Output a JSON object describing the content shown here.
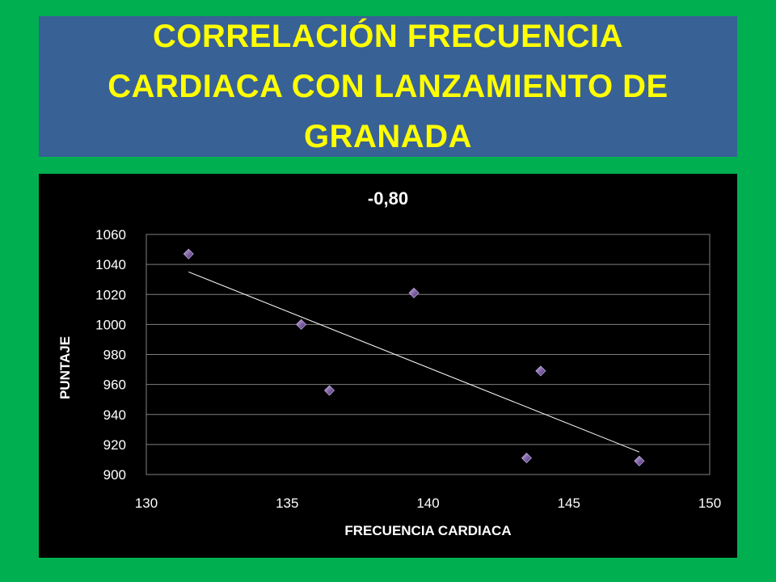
{
  "slide": {
    "title": "CORRELACIÓN FRECUENCIA CARDIACA CON LANZAMIENTO DE GRANADA"
  },
  "colors": {
    "background": "#00b050",
    "banner": "#386196",
    "title_text": "#ffff00",
    "chart_background": "#000000",
    "marker": "#8064a2",
    "trendline": "#ffffff",
    "gridline": "#808080"
  },
  "chart_data": {
    "type": "scatter",
    "title": "-0,80",
    "xlabel": "FRECUENCIA CARDIACA",
    "ylabel": "PUNTAJE",
    "xlim": [
      130,
      150
    ],
    "ylim": [
      900,
      1060
    ],
    "x_ticks": [
      130,
      135,
      140,
      145,
      150
    ],
    "y_ticks": [
      900,
      920,
      940,
      960,
      980,
      1000,
      1020,
      1040,
      1060
    ],
    "grid": "horizontal",
    "legend": "none",
    "points": [
      {
        "x": 131.5,
        "y": 1047
      },
      {
        "x": 135.5,
        "y": 1000
      },
      {
        "x": 136.5,
        "y": 956
      },
      {
        "x": 139.5,
        "y": 1021
      },
      {
        "x": 143.5,
        "y": 911
      },
      {
        "x": 144.0,
        "y": 969
      },
      {
        "x": 147.5,
        "y": 909
      }
    ],
    "trendline": {
      "type": "linear",
      "x": [
        131.5,
        147.5
      ],
      "y": [
        1035,
        915
      ]
    }
  }
}
